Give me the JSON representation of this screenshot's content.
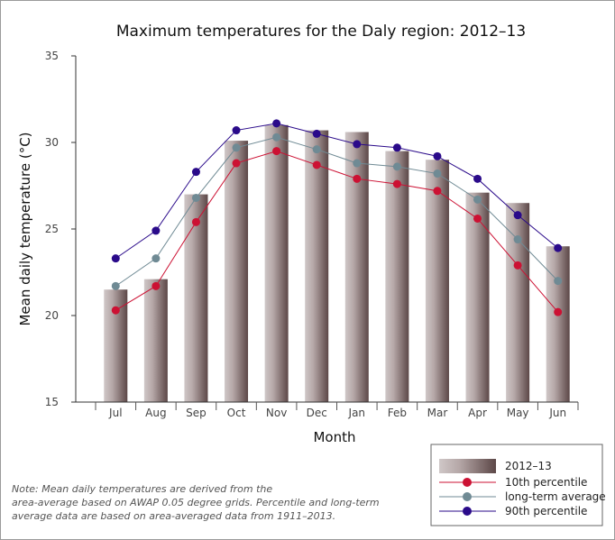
{
  "chart_data": {
    "type": "bar",
    "title": "Maximum temperatures for the Daly region: 2012–13",
    "xlabel": "Month",
    "ylabel": "Mean daily temperature (°C)",
    "ylim": [
      15,
      35
    ],
    "yticks": [
      15,
      20,
      25,
      30,
      35
    ],
    "grid": false,
    "legend_position": "bottom-right",
    "categories": [
      "Jul",
      "Aug",
      "Sep",
      "Oct",
      "Nov",
      "Dec",
      "Jan",
      "Feb",
      "Mar",
      "Apr",
      "May",
      "Jun"
    ],
    "bar_series": {
      "name": "2012–13",
      "values": [
        21.5,
        22.1,
        27.0,
        30.1,
        31.0,
        30.7,
        30.6,
        29.5,
        29.0,
        27.1,
        26.5,
        24.0
      ]
    },
    "series": [
      {
        "name": "10th percentile",
        "color": "#cc1133",
        "values": [
          20.3,
          21.7,
          25.4,
          28.8,
          29.5,
          28.7,
          27.9,
          27.6,
          27.2,
          25.6,
          22.9,
          20.2
        ]
      },
      {
        "name": "long-term average",
        "color": "#6f8a94",
        "values": [
          21.7,
          23.3,
          26.8,
          29.7,
          30.3,
          29.6,
          28.8,
          28.6,
          28.2,
          26.7,
          24.4,
          22.0
        ]
      },
      {
        "name": "90th percentile",
        "color": "#2a0a8a",
        "values": [
          23.3,
          24.9,
          28.3,
          30.7,
          31.1,
          30.5,
          29.9,
          29.7,
          29.2,
          27.9,
          25.8,
          23.9
        ]
      }
    ]
  },
  "note": {
    "lines": [
      "Note: Mean daily temperatures are derived from the",
      "area-average based on AWAP 0.05 degree grids. Percentile and long-term",
      "average data are based on area-averaged data from 1911–2013."
    ]
  }
}
